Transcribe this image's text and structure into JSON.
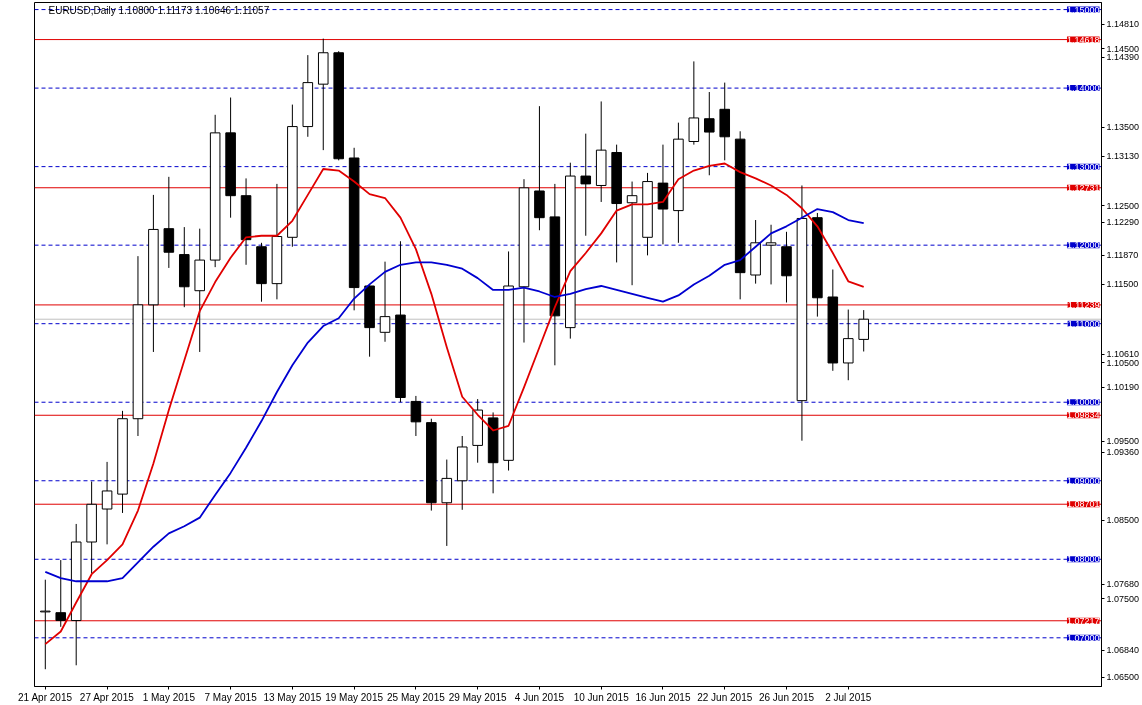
{
  "chart_data": {
    "type": "candlestick",
    "title": "EURUSD,Daily  1.10800 1.11173 1.10646 1.11057",
    "categories": [
      "21 Apr 2015",
      null,
      null,
      null,
      "27 Apr 2015",
      null,
      null,
      null,
      "1 May 2015",
      null,
      null,
      null,
      "7 May 2015",
      null,
      null,
      null,
      "13 May 2015",
      null,
      null,
      null,
      "19 May 2015",
      null,
      null,
      null,
      "25 May 2015",
      null,
      null,
      null,
      "29 May 2015",
      null,
      null,
      null,
      "4 Jun 2015",
      null,
      null,
      null,
      "10 Jun 2015",
      null,
      null,
      null,
      "16 Jun 2015",
      null,
      null,
      null,
      "22 Jun 2015",
      null,
      null,
      null,
      "26 Jun 2015",
      null,
      null,
      null,
      "2 Jul 2015",
      null
    ],
    "ohlc": [
      [
        1.0733,
        1.0774,
        1.066,
        1.0734
      ],
      [
        1.0732,
        1.0799,
        1.0714,
        1.0722
      ],
      [
        1.0722,
        1.0845,
        1.0665,
        1.0822
      ],
      [
        1.0822,
        1.0899,
        1.0782,
        1.087
      ],
      [
        1.0864,
        1.0924,
        1.0819,
        1.0887
      ],
      [
        1.0883,
        1.0989,
        1.0859,
        1.0979
      ],
      [
        1.0979,
        1.1186,
        1.0957,
        1.1124
      ],
      [
        1.1124,
        1.1264,
        1.1064,
        1.122
      ],
      [
        1.1221,
        1.1287,
        1.1171,
        1.1191
      ],
      [
        1.1188,
        1.1223,
        1.1121,
        1.1147
      ],
      [
        1.1142,
        1.1221,
        1.1064,
        1.1181
      ],
      [
        1.1181,
        1.1366,
        1.1172,
        1.1343
      ],
      [
        1.1343,
        1.1388,
        1.1235,
        1.1263
      ],
      [
        1.1263,
        1.1285,
        1.1175,
        1.1207
      ],
      [
        1.1198,
        1.1203,
        1.1128,
        1.1151
      ],
      [
        1.1151,
        1.1278,
        1.1131,
        1.1211
      ],
      [
        1.121,
        1.1379,
        1.1198,
        1.1351
      ],
      [
        1.1351,
        1.1442,
        1.1338,
        1.1407
      ],
      [
        1.1405,
        1.1463,
        1.1321,
        1.1445
      ],
      [
        1.1445,
        1.1447,
        1.1308,
        1.131
      ],
      [
        1.1311,
        1.1324,
        1.1117,
        1.1146
      ],
      [
        1.1148,
        1.115,
        1.1058,
        1.1095
      ],
      [
        1.1089,
        1.1179,
        1.1077,
        1.1109
      ],
      [
        1.1111,
        1.1205,
        1.1,
        1.1006
      ],
      [
        1.1001,
        1.1008,
        1.0957,
        1.0975
      ],
      [
        1.0974,
        1.0979,
        1.0862,
        1.0872
      ],
      [
        1.0872,
        1.0927,
        1.0817,
        1.0903
      ],
      [
        1.09,
        1.0957,
        1.0863,
        1.0943
      ],
      [
        1.0945,
        1.1004,
        1.0923,
        1.099
      ],
      [
        1.098,
        1.0987,
        1.0884,
        1.0923
      ],
      [
        1.0926,
        1.1192,
        1.0913,
        1.1148
      ],
      [
        1.1147,
        1.1284,
        1.1076,
        1.1273
      ],
      [
        1.1269,
        1.1377,
        1.1219,
        1.1235
      ],
      [
        1.1236,
        1.1278,
        1.1047,
        1.111
      ],
      [
        1.1095,
        1.1305,
        1.1081,
        1.1288
      ],
      [
        1.1288,
        1.1342,
        1.1212,
        1.1278
      ],
      [
        1.1276,
        1.1383,
        1.1255,
        1.1321
      ],
      [
        1.1318,
        1.1328,
        1.1178,
        1.1253
      ],
      [
        1.1254,
        1.1281,
        1.1149,
        1.1263
      ],
      [
        1.121,
        1.1292,
        1.1187,
        1.1281
      ],
      [
        1.1279,
        1.1328,
        1.1201,
        1.1246
      ],
      [
        1.1244,
        1.1356,
        1.1203,
        1.1335
      ],
      [
        1.1332,
        1.1434,
        1.1328,
        1.1362
      ],
      [
        1.1361,
        1.1395,
        1.1289,
        1.1344
      ],
      [
        1.1373,
        1.1407,
        1.1308,
        1.1338
      ],
      [
        1.1335,
        1.1345,
        1.1131,
        1.1165
      ],
      [
        1.1162,
        1.1232,
        1.1151,
        1.1203
      ],
      [
        1.12,
        1.1226,
        1.115,
        1.1203
      ],
      [
        1.1198,
        1.1217,
        1.1127,
        1.1161
      ],
      [
        1.1002,
        1.1276,
        1.0951,
        1.1234
      ],
      [
        1.1235,
        1.1241,
        1.1109,
        1.1133
      ],
      [
        1.1134,
        1.1169,
        1.104,
        1.105
      ],
      [
        1.105,
        1.1118,
        1.1028,
        1.1081
      ],
      [
        1.108,
        1.11173,
        1.10646,
        1.11057
      ]
    ],
    "series": [
      {
        "type": "line",
        "color": "#e00000",
        "values": [
          1.0692,
          1.0708,
          1.0745,
          1.0781,
          1.0799,
          1.0819,
          1.0862,
          1.0922,
          1.099,
          1.1053,
          1.1116,
          1.1153,
          1.1184,
          1.121,
          1.1212,
          1.1212,
          1.1231,
          1.1264,
          1.1297,
          1.1295,
          1.1281,
          1.1265,
          1.126,
          1.1235,
          1.1195,
          1.1138,
          1.107,
          1.1007,
          1.0984,
          1.0964,
          1.097,
          1.1019,
          1.107,
          1.1121,
          1.1167,
          1.119,
          1.1215,
          1.1244,
          1.1252,
          1.1252,
          1.1255,
          1.1284,
          1.1295,
          1.1301,
          1.1304,
          1.1293,
          1.1285,
          1.1276,
          1.1264,
          1.1247,
          1.1224,
          1.119,
          1.1154,
          1.1147
        ]
      },
      {
        "type": "line",
        "color": "#0000d0",
        "values": [
          1.0784,
          1.0776,
          1.0772,
          1.0772,
          1.0772,
          1.0776,
          1.0796,
          1.0816,
          1.0833,
          1.0842,
          1.0853,
          1.0882,
          1.091,
          1.0942,
          1.0976,
          1.1013,
          1.1047,
          1.1076,
          1.1097,
          1.1107,
          1.1132,
          1.115,
          1.1166,
          1.1175,
          1.1178,
          1.1178,
          1.1175,
          1.117,
          1.1158,
          1.1143,
          1.1143,
          1.1146,
          1.1141,
          1.1134,
          1.1138,
          1.1144,
          1.1148,
          1.1143,
          1.1138,
          1.1133,
          1.1128,
          1.1136,
          1.115,
          1.1161,
          1.1175,
          1.1181,
          1.1198,
          1.1215,
          1.1224,
          1.1235,
          1.1246,
          1.1242,
          1.1232,
          1.1228
        ]
      }
    ],
    "ylim": [
      1.0638,
      1.1509
    ],
    "yticks": [
      {
        "value": 1.1481,
        "label": "1.14810"
      },
      {
        "value": 1.145,
        "label": "1.14500"
      },
      {
        "value": 1.1439,
        "label": "1.14390"
      },
      {
        "value": 1.135,
        "label": "1.13500"
      },
      {
        "value": 1.1313,
        "label": "1.13130"
      },
      {
        "value": 1.125,
        "label": "1.12500"
      },
      {
        "value": 1.1229,
        "label": "1.12290"
      },
      {
        "value": 1.1187,
        "label": "1.11870"
      },
      {
        "value": 1.115,
        "label": "1.11500"
      },
      {
        "value": 1.1061,
        "label": "1.10610"
      },
      {
        "value": 1.105,
        "label": "1.10500"
      },
      {
        "value": 1.1019,
        "label": "1.10190"
      },
      {
        "value": 1.095,
        "label": "1.09500"
      },
      {
        "value": 1.0936,
        "label": "1.09360"
      },
      {
        "value": 1.085,
        "label": "1.08500"
      },
      {
        "value": 1.0768,
        "label": "1.07680"
      },
      {
        "value": 1.075,
        "label": "1.07500"
      },
      {
        "value": 1.0684,
        "label": "1.06840"
      },
      {
        "value": 1.065,
        "label": "1.06500"
      }
    ],
    "ref_lines": [
      {
        "axis": "y",
        "value": 1.15,
        "label": "1.15000",
        "color": "#0000cc",
        "line_style": "dashed"
      },
      {
        "axis": "y",
        "value": 1.14,
        "label": "1.14000",
        "color": "#0000cc",
        "line_style": "dashed"
      },
      {
        "axis": "y",
        "value": 1.13,
        "label": "1.13000",
        "color": "#0000cc",
        "line_style": "dashed"
      },
      {
        "axis": "y",
        "value": 1.12,
        "label": "1.12000",
        "color": "#0000cc",
        "line_style": "dashed"
      },
      {
        "axis": "y",
        "value": 1.11,
        "label": "1.11000",
        "color": "#0000cc",
        "line_style": "dashed"
      },
      {
        "axis": "y",
        "value": 1.1,
        "label": "1.10000",
        "color": "#0000cc",
        "line_style": "dashed"
      },
      {
        "axis": "y",
        "value": 1.09,
        "label": "1.09000",
        "color": "#0000cc",
        "line_style": "dashed"
      },
      {
        "axis": "y",
        "value": 1.08,
        "label": "1.08000",
        "color": "#0000cc",
        "line_style": "dashed"
      },
      {
        "axis": "y",
        "value": 1.07,
        "label": "1.07000",
        "color": "#0000cc",
        "line_style": "dashed"
      },
      {
        "axis": "y",
        "value": 1.14618,
        "label": "1.14618",
        "color": "#e00000",
        "line_style": "solid"
      },
      {
        "axis": "y",
        "value": 1.12731,
        "label": "1.12731",
        "color": "#e00000",
        "line_style": "solid"
      },
      {
        "axis": "y",
        "value": 1.11239,
        "label": "1.11239",
        "color": "#e00000",
        "line_style": "solid"
      },
      {
        "axis": "y",
        "value": 1.09834,
        "label": "1.09834",
        "color": "#e00000",
        "line_style": "solid"
      },
      {
        "axis": "y",
        "value": 1.08701,
        "label": "1.08701",
        "color": "#e00000",
        "line_style": "solid"
      },
      {
        "axis": "y",
        "value": 1.07217,
        "label": "1.07217",
        "color": "#e00000",
        "line_style": "solid"
      },
      {
        "axis": "y",
        "value": 1.11057,
        "color": "#c0c0c0",
        "line_style": "solid"
      }
    ],
    "grid": false
  }
}
